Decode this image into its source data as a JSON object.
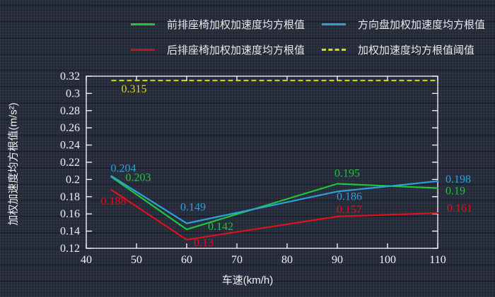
{
  "colors": {
    "background": "#252a38",
    "frame": "#ffffff",
    "tick_text": "#f2f2f2",
    "legend_text": "#e8e8e8",
    "green": "#1dc837",
    "blue": "#2f9fd8",
    "red": "#d8141f",
    "yellow": "#d6de00"
  },
  "legend": {
    "items": [
      {
        "id": "front-seat",
        "label": "前排座椅加权加速度均方根值",
        "color": "#1dc837",
        "dash": false
      },
      {
        "id": "steering-wheel",
        "label": "方向盘加权加速度均方根值",
        "color": "#2f9fd8",
        "dash": false
      },
      {
        "id": "rear-seat",
        "label": "后排座椅加权加速度均方根值",
        "color": "#c11020",
        "dash": false
      },
      {
        "id": "threshold",
        "label": "加权加速度均方根值阈值",
        "color": "#d6de00",
        "dash": true
      }
    ]
  },
  "chart_data": {
    "type": "line",
    "title": "",
    "xlabel": "车速(km/h)",
    "ylabel": "加权加速度均方根值(m/s²)",
    "x": [
      45,
      60,
      90,
      110
    ],
    "xlim": [
      40,
      110
    ],
    "ylim": [
      0.12,
      0.32
    ],
    "xticks": [
      40,
      50,
      60,
      70,
      80,
      90,
      100,
      110
    ],
    "yticks": [
      0.12,
      0.14,
      0.16,
      0.18,
      0.2,
      0.22,
      0.24,
      0.26,
      0.28,
      0.3,
      0.32
    ],
    "ytick_labels": [
      "0.12",
      "0.14",
      "0.16",
      "0.18",
      "0.2",
      "0.22",
      "0.24",
      "0.26",
      "0.28",
      "0.3",
      "0.32"
    ],
    "grid": false,
    "legend_position": "top",
    "series": [
      {
        "name": "前排座椅加权加速度均方根值",
        "color": "#1dc837",
        "values": [
          0.203,
          0.142,
          0.195,
          0.19
        ],
        "labels": [
          "0.203",
          "0.142",
          "0.195",
          "0.19"
        ]
      },
      {
        "name": "方向盘加权加速度均方根值",
        "color": "#2f9fd8",
        "values": [
          0.204,
          0.149,
          0.186,
          0.198
        ],
        "labels": [
          "0.204",
          "0.149",
          "0.186",
          "0.198"
        ]
      },
      {
        "name": "后排座椅加权加速度均方根值",
        "color": "#d8141f",
        "values": [
          0.188,
          0.13,
          0.157,
          0.161
        ],
        "labels": [
          "0.188",
          "0.13",
          "0.157",
          "0.161"
        ]
      }
    ],
    "threshold": {
      "name": "加权加速度均方根值阈值",
      "value": 0.315,
      "label": "0.315",
      "color": "#d6de00",
      "x_range": [
        45,
        110
      ]
    }
  }
}
